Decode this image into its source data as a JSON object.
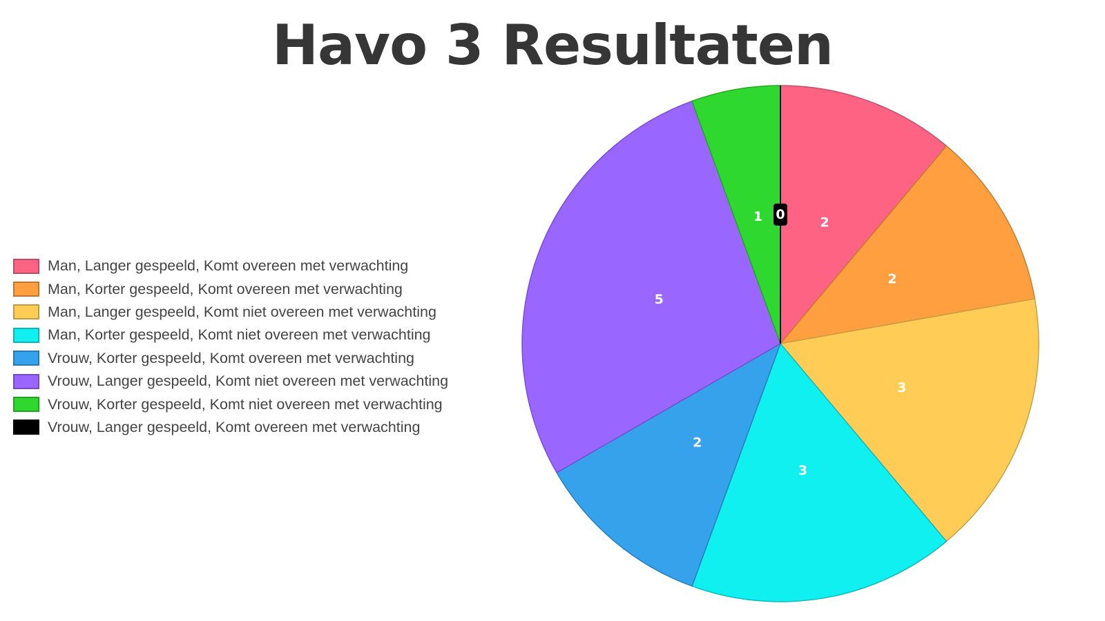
{
  "chart_data": {
    "type": "pie",
    "title": "Havo 3 Resultaten",
    "categories": [
      "Man, Langer gespeeld, Komt overeen met verwachting",
      "Man, Korter gespeeld, Komt overeen met verwachting",
      "Man, Langer gespeeld, Komt niet overeen met verwachting",
      "Man, Korter gespeeld, Komt niet overeen met verwachting",
      "Vrouw, Korter gespeeld, Komt overeen met verwachting",
      "Vrouw, Langer gespeeld, Komt niet overeen met verwachting",
      "Vrouw, Korter gespeeld, Komt niet overeen met verwachting",
      "Vrouw, Langer gespeeld, Komt overeen met verwachting"
    ],
    "values": [
      2,
      2,
      3,
      3,
      2,
      5,
      1,
      0
    ],
    "colors": [
      "#ff6384",
      "#ff9f40",
      "#ffcd56",
      "#10f0f0",
      "#36a2eb",
      "#9966ff",
      "#2ed82e",
      "#000000"
    ],
    "legend_position": "left",
    "start_angle": "top, clockwise"
  }
}
